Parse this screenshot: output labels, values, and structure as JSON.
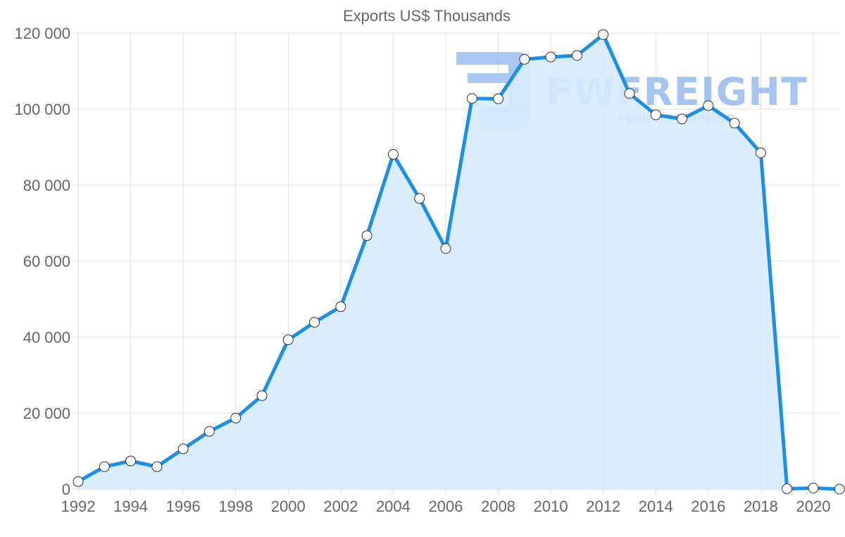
{
  "chart_data": {
    "type": "area",
    "title": "Exports US$ Thousands",
    "xlabel": "",
    "ylabel": "",
    "x": [
      1992,
      1993,
      1994,
      1995,
      1996,
      1997,
      1998,
      1999,
      2000,
      2001,
      2002,
      2003,
      2004,
      2005,
      2006,
      2007,
      2008,
      2009,
      2010,
      2011,
      2012,
      2013,
      2014,
      2015,
      2016,
      2017,
      2018,
      2019,
      2020,
      2021
    ],
    "series": [
      {
        "name": "Exports US$ Thousands",
        "values": [
          2000,
          5900,
          7400,
          5900,
          10600,
          15200,
          18700,
          24600,
          39300,
          43900,
          48000,
          66700,
          88100,
          76500,
          63300,
          102800,
          102700,
          113100,
          113700,
          114100,
          119600,
          104100,
          98500,
          97400,
          100900,
          96300,
          88500,
          100,
          300,
          0
        ]
      }
    ],
    "ylim": [
      0,
      120000
    ],
    "y_ticks": [
      0,
      20000,
      40000,
      60000,
      80000,
      100000,
      120000
    ],
    "y_tick_labels": [
      "0",
      "20 000",
      "40 000",
      "60 000",
      "80 000",
      "100 000",
      "120 000"
    ],
    "x_tick_labels": [
      "1992",
      "1994",
      "1996",
      "1998",
      "2000",
      "2002",
      "2004",
      "2006",
      "2008",
      "2010",
      "2012",
      "2014",
      "2016",
      "2018",
      "2020"
    ],
    "grid": true,
    "legend": "none",
    "colors": {
      "line": "#1a8fec",
      "fill": "#d7ebfc",
      "marker_fill": "#ffffff",
      "marker_stroke": "#333333"
    }
  },
  "watermark": {
    "brand": "FWFREIGHT",
    "tagline": "FREIGHT SHIPPING",
    "color": "#8fb6ee"
  }
}
